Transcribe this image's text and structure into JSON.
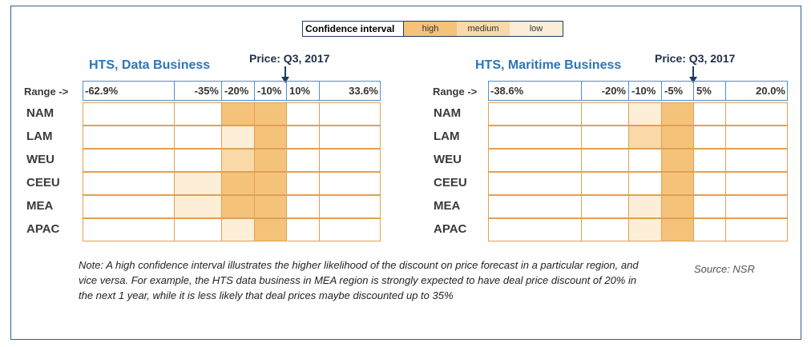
{
  "legend": {
    "title": "Confidence interval",
    "items": [
      {
        "label": "high",
        "color": "#f5c27a"
      },
      {
        "label": "medium",
        "color": "#f9d9a8"
      },
      {
        "label": "low",
        "color": "#fdeed7"
      }
    ]
  },
  "chart_data": [
    {
      "type": "heatmap",
      "title": "HTS, Data Business",
      "price_label": "Price: Q3, 2017",
      "range_label": "Range ->",
      "columns": [
        "-62.9%",
        "-35%",
        "-20%",
        "-10%",
        "10%",
        "33.6%"
      ],
      "rows": [
        "NAM",
        "LAM",
        "WEU",
        "CEEU",
        "MEA",
        "APAC"
      ],
      "cells": [
        [
          "none",
          "none",
          "high",
          "high",
          "none",
          "none"
        ],
        [
          "none",
          "none",
          "low",
          "high",
          "none",
          "none"
        ],
        [
          "none",
          "none",
          "medium",
          "high",
          "none",
          "none"
        ],
        [
          "none",
          "low",
          "high",
          "high",
          "none",
          "none"
        ],
        [
          "none",
          "low",
          "high",
          "high",
          "none",
          "none"
        ],
        [
          "none",
          "none",
          "low",
          "high",
          "none",
          "none"
        ]
      ]
    },
    {
      "type": "heatmap",
      "title": "HTS, Maritime Business",
      "price_label": "Price: Q3, 2017",
      "range_label": "Range ->",
      "columns": [
        "-38.6%",
        "-20%",
        "-10%",
        "-5%",
        "5%",
        "20.0%"
      ],
      "rows": [
        "NAM",
        "LAM",
        "WEU",
        "CEEU",
        "MEA",
        "APAC"
      ],
      "cells": [
        [
          "none",
          "none",
          "low",
          "high",
          "none",
          "none"
        ],
        [
          "none",
          "none",
          "medium",
          "high",
          "none",
          "none"
        ],
        [
          "none",
          "none",
          "none",
          "high",
          "none",
          "none"
        ],
        [
          "none",
          "none",
          "none",
          "high",
          "none",
          "none"
        ],
        [
          "none",
          "none",
          "low",
          "high",
          "none",
          "none"
        ],
        [
          "none",
          "none",
          "low",
          "high",
          "none",
          "none"
        ]
      ]
    }
  ],
  "note": "Note: A high confidence interval illustrates the higher likelihood of the discount on price forecast in a particular region, and vice versa. For example, the HTS data business in MEA region is strongly expected to have deal price discount of 20% in the next 1 year, while it is less likely that deal prices maybe discounted up to 35%",
  "source": "Source: NSR"
}
